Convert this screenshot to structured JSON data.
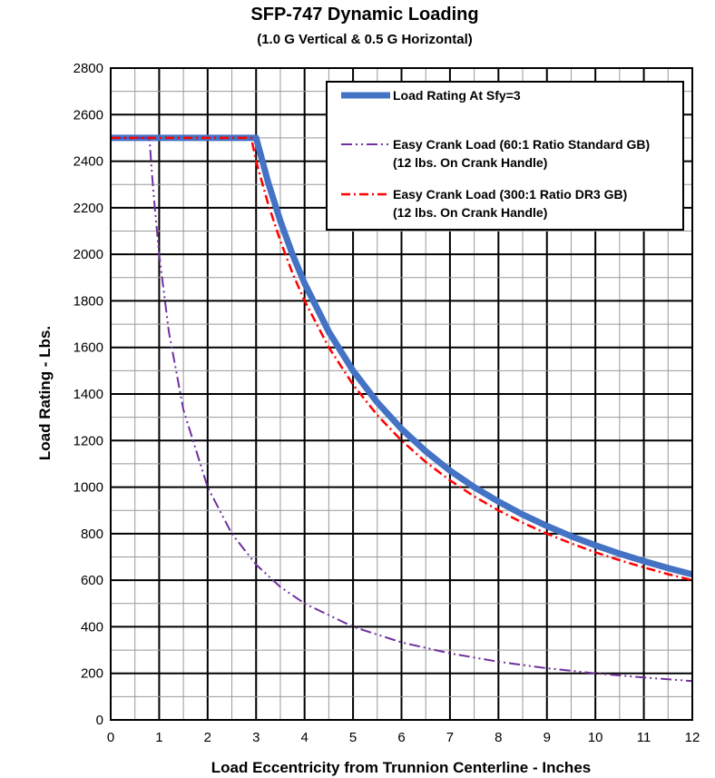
{
  "chart_data": {
    "type": "line",
    "title": "SFP-747 Dynamic Loading",
    "subtitle": "(1.0 G Vertical & 0.5 G Horizontal)",
    "xlabel": "Load Eccentricity from Trunnion Centerline - Inches",
    "ylabel": "Load Rating - Lbs.",
    "xlim": [
      0,
      12
    ],
    "ylim": [
      0,
      2800
    ],
    "x_ticks": [
      0,
      1,
      2,
      3,
      4,
      5,
      6,
      7,
      8,
      9,
      10,
      11,
      12
    ],
    "y_ticks": [
      0,
      200,
      400,
      600,
      800,
      1000,
      1200,
      1400,
      1600,
      1800,
      2000,
      2200,
      2400,
      2600,
      2800
    ],
    "grid": true,
    "legend_position": "top-right",
    "series": [
      {
        "name": "Load Rating At Sfy=3",
        "color": "#4472C4",
        "style": "solid",
        "x": [
          0,
          3,
          3.25,
          3.5,
          3.75,
          4,
          4.5,
          5,
          5.5,
          6,
          6.5,
          7,
          7.5,
          8,
          8.5,
          9,
          9.5,
          10,
          10.5,
          11,
          11.5,
          12
        ],
        "y": [
          2500,
          2500,
          2308,
          2143,
          2000,
          1875,
          1667,
          1500,
          1364,
          1250,
          1154,
          1071,
          1000,
          938,
          882,
          833,
          789,
          750,
          714,
          682,
          652,
          625
        ]
      },
      {
        "name": "Easy Crank Load (60:1 Ratio Standard GB)\n(12 lbs. On Crank Handle)",
        "color": "#7030A0",
        "style": "dash-dot-dot",
        "x": [
          0,
          0.8,
          0.85,
          0.9,
          1,
          1.2,
          1.5,
          2,
          2.5,
          3,
          3.5,
          4,
          5,
          6,
          7,
          8,
          9,
          10,
          11,
          12
        ],
        "y": [
          2500,
          2500,
          2350,
          2222,
          2000,
          1667,
          1333,
          1000,
          800,
          667,
          571,
          500,
          400,
          333,
          286,
          250,
          222,
          200,
          182,
          167
        ]
      },
      {
        "name": "Easy Crank Load (300:1 Ratio DR3 GB)\n(12 lbs. On Crank Handle)",
        "color": "#FF0000",
        "style": "dash-dot",
        "x": [
          0,
          2.9,
          3,
          3.25,
          3.5,
          3.75,
          4,
          4.5,
          5,
          5.5,
          6,
          6.5,
          7,
          7.5,
          8,
          8.5,
          9,
          9.5,
          10,
          10.5,
          11,
          11.5,
          12
        ],
        "y": [
          2500,
          2500,
          2400,
          2215,
          2057,
          1920,
          1800,
          1600,
          1440,
          1309,
          1200,
          1108,
          1029,
          960,
          900,
          847,
          800,
          758,
          720,
          686,
          655,
          626,
          600
        ]
      }
    ]
  }
}
